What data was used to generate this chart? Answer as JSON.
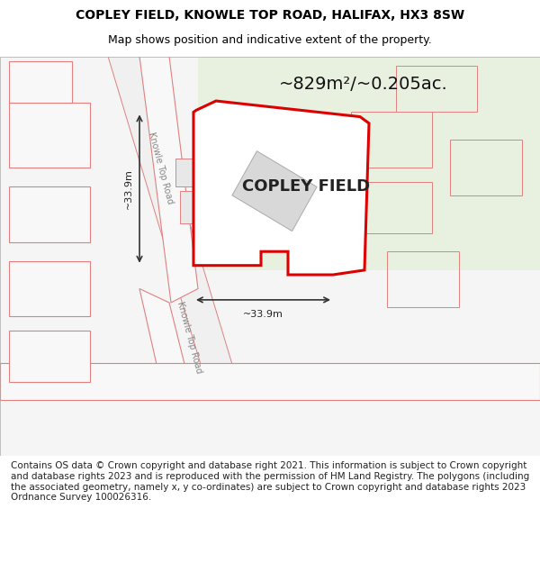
{
  "title_line1": "COPLEY FIELD, KNOWLE TOP ROAD, HALIFAX, HX3 8SW",
  "title_line2": "Map shows position and indicative extent of the property.",
  "field_label": "COPLEY FIELD",
  "area_label": "~829m²/~0.205ac.",
  "dim_horiz": "~33.9m",
  "dim_vert": "~33.9m",
  "footer_text": "Contains OS data © Crown copyright and database right 2021. This information is subject to Crown copyright and database rights 2023 and is reproduced with the permission of HM Land Registry. The polygons (including the associated geometry, namely x, y co-ordinates) are subject to Crown copyright and database rights 2023 Ordnance Survey 100026316.",
  "bg_color": "#ffffff",
  "map_bg": "#f5f5f5",
  "green_area_color": "#e8f0e0",
  "road_color": "#e8c8c8",
  "road_line_color": "#e08080",
  "property_outline_color": "#dd0000",
  "property_fill": "#ffffff",
  "building_fill": "#d8d8d8",
  "title_fontsize": 10,
  "subtitle_fontsize": 9,
  "label_fontsize": 13,
  "area_fontsize": 14,
  "footer_fontsize": 7.5
}
